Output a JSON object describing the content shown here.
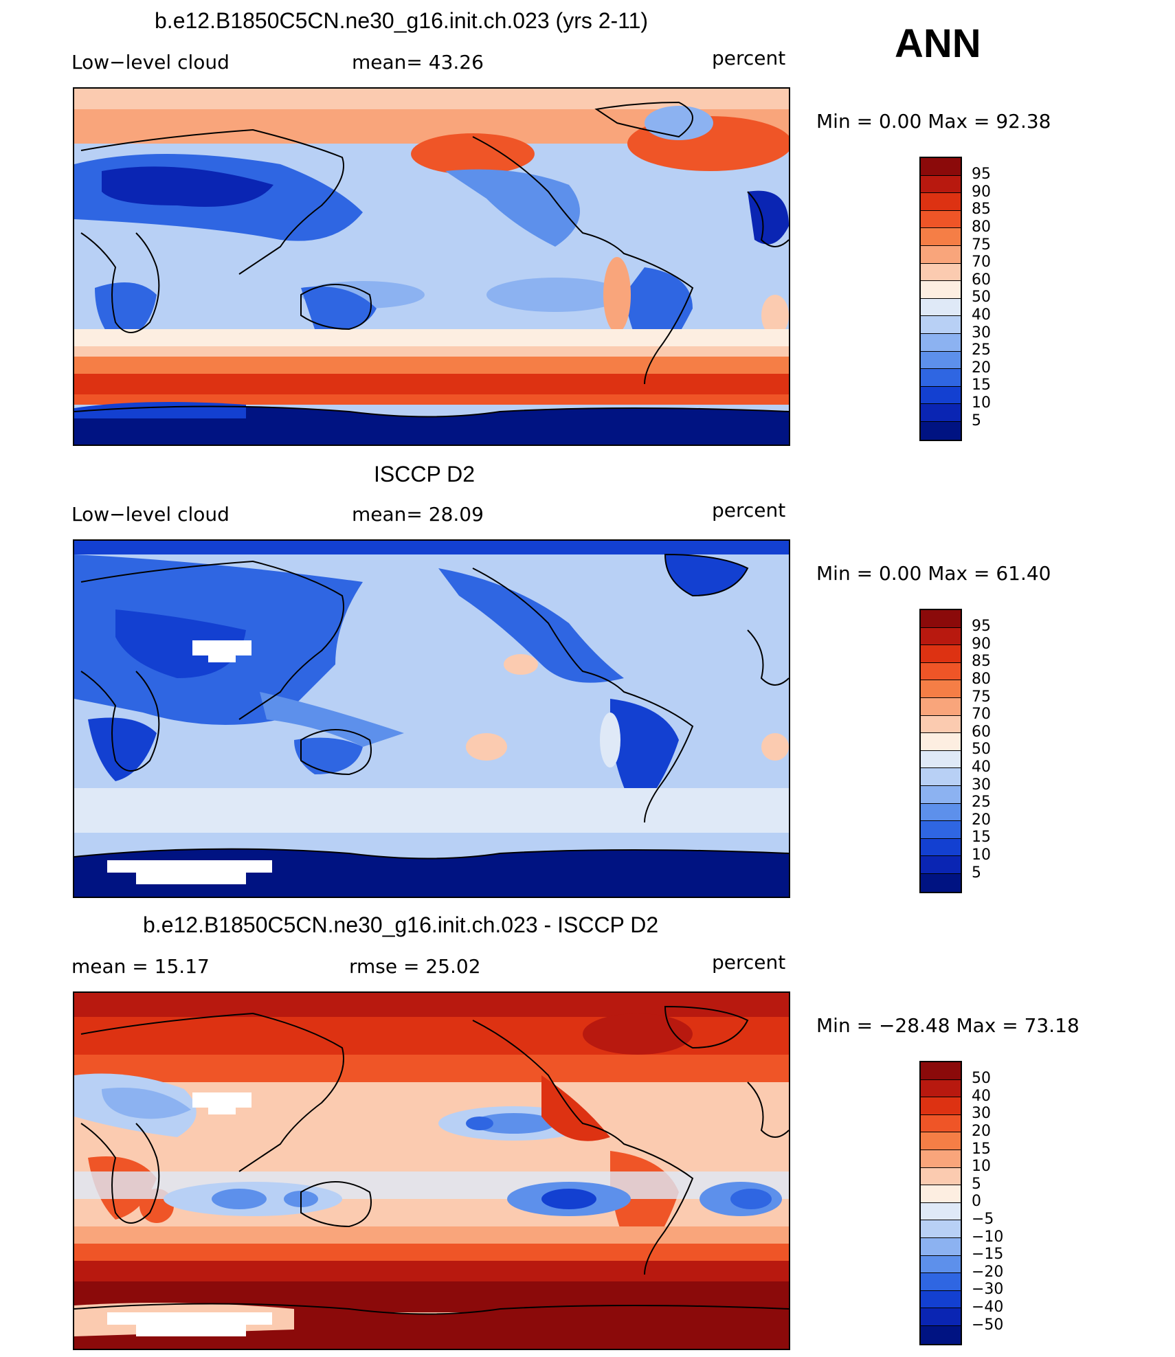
{
  "season_label": "ANN",
  "panels": [
    {
      "title": "b.e12.B1850C5CN.ne30_g16.init.ch.023 (yrs 2-11)",
      "left_label": "Low−level cloud",
      "mid_label": "mean=   43.26",
      "units": "percent",
      "minmax": "Min =    0.00 Max =   92.38",
      "colorbar_labels": [
        "95",
        "90",
        "85",
        "80",
        "75",
        "70",
        "60",
        "50",
        "40",
        "30",
        "25",
        "20",
        "15",
        "10",
        "5"
      ],
      "colors": [
        "#8b0a0a",
        "#b8190f",
        "#dd3212",
        "#ef5527",
        "#f57e46",
        "#f9a57b",
        "#fbcbb0",
        "#fdeee1",
        "#dfe9f7",
        "#b8d0f5",
        "#8cb2f1",
        "#5d90eb",
        "#2f66e2",
        "#1340d1",
        "#0a25b3",
        "#001382"
      ]
    },
    {
      "title": "ISCCP D2",
      "left_label": "Low−level cloud",
      "mid_label": "mean=   28.09",
      "units": "percent",
      "minmax": "Min =    0.00 Max =   61.40",
      "colorbar_labels": [
        "95",
        "90",
        "85",
        "80",
        "75",
        "70",
        "60",
        "50",
        "40",
        "30",
        "25",
        "20",
        "15",
        "10",
        "5"
      ],
      "colors": [
        "#8b0a0a",
        "#b8190f",
        "#dd3212",
        "#ef5527",
        "#f57e46",
        "#f9a57b",
        "#fbcbb0",
        "#fdeee1",
        "#dfe9f7",
        "#b8d0f5",
        "#8cb2f1",
        "#5d90eb",
        "#2f66e2",
        "#1340d1",
        "#0a25b3",
        "#001382"
      ]
    },
    {
      "title": "b.e12.B1850C5CN.ne30_g16.init.ch.023 - ISCCP D2",
      "left_label": "mean =   15.17",
      "mid_label": "rmse =   25.02",
      "units": "percent",
      "minmax": "Min = −28.48 Max =   73.18",
      "colorbar_labels": [
        "50",
        "40",
        "30",
        "20",
        "15",
        "10",
        "5",
        "0",
        "−5",
        "−10",
        "−15",
        "−20",
        "−30",
        "−40",
        "−50"
      ],
      "colors": [
        "#8b0a0a",
        "#b8190f",
        "#dd3212",
        "#ef5527",
        "#f57e46",
        "#f9a57b",
        "#fbcbb0",
        "#fdeee1",
        "#dfe9f7",
        "#b8d0f5",
        "#8cb2f1",
        "#5d90eb",
        "#2f66e2",
        "#1340d1",
        "#0a25b3",
        "#001382"
      ]
    }
  ]
}
